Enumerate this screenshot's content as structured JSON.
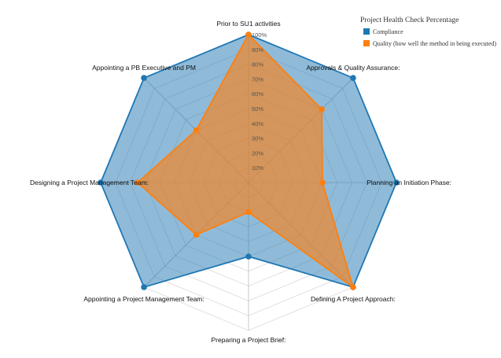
{
  "chart_data": {
    "type": "radar",
    "axes": [
      "Prior to SU1 activities",
      "Approvals & Quality Assurance:",
      "Planning an Initiation Phase:",
      "Defining A Project Approach:",
      "Preparing a Project Brief:",
      "Appointing a Project Management Team:",
      "Designing a Project Management Team:",
      "Appointing a PB Executive and PM"
    ],
    "ticks": [
      "10%",
      "20%",
      "30%",
      "40%",
      "50%",
      "60%",
      "70%",
      "80%",
      "90%",
      "100%"
    ],
    "range": [
      0,
      100
    ],
    "legend_title": "Project Health Check Percentage",
    "legend_position": "top-right",
    "series": [
      {
        "name": "Compliance",
        "color": "#1f77b4",
        "values": [
          100,
          100,
          100,
          100,
          50,
          100,
          100,
          100
        ]
      },
      {
        "name": "Quality (how well the method in being executed)",
        "color": "#ff7f0e",
        "values": [
          100,
          70,
          50,
          100,
          20,
          50,
          75,
          50
        ]
      }
    ]
  }
}
